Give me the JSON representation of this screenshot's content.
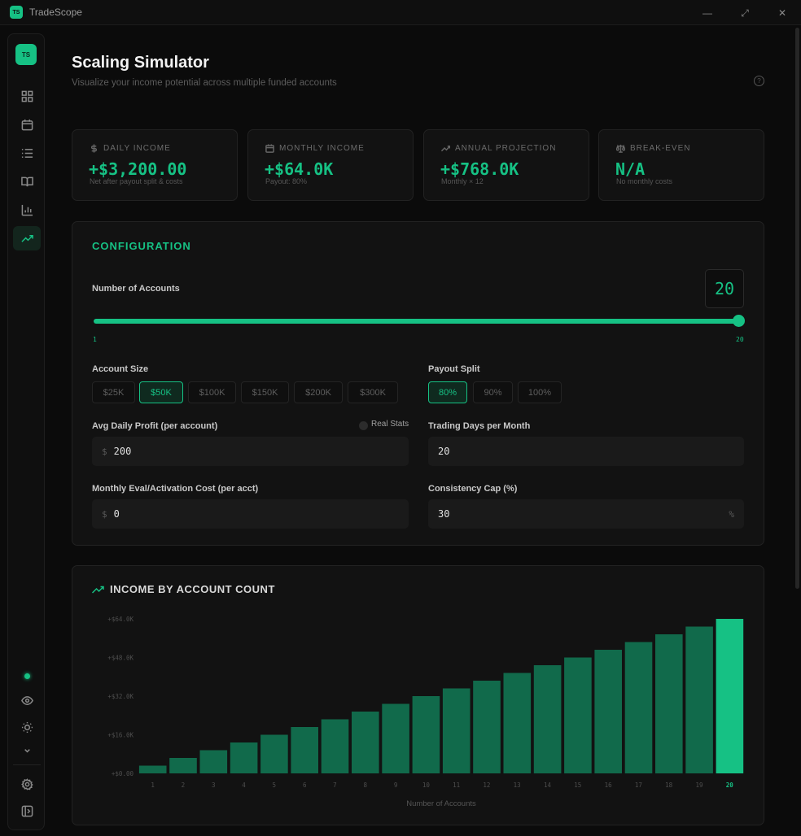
{
  "app": {
    "logo_text": "TS",
    "title": "TradeScope"
  },
  "window_controls": {
    "minimize": "—",
    "maximize": "⤢",
    "close": "✕"
  },
  "sidebar": {
    "avatar": "TS",
    "items": [
      {
        "icon": "dashboard-icon"
      },
      {
        "icon": "calendar-icon"
      },
      {
        "icon": "list-icon"
      },
      {
        "icon": "book-icon"
      },
      {
        "icon": "bar-chart-icon"
      },
      {
        "icon": "trending-up-icon",
        "active": true
      }
    ],
    "bottom_items": [
      {
        "icon": "eye-icon"
      },
      {
        "icon": "sun-icon"
      },
      {
        "icon": "chevron-down-icon"
      },
      {
        "icon": "gear-icon"
      },
      {
        "icon": "panel-toggle-icon"
      }
    ]
  },
  "header": {
    "title": "Scaling Simulator",
    "subtitle": "Visualize your income potential across multiple funded accounts",
    "help": "?"
  },
  "stats": [
    {
      "label": "DAILY INCOME",
      "icon": "dollar-icon",
      "value": "+$3,200.00",
      "note": "Net after payout split & costs"
    },
    {
      "label": "MONTHLY INCOME",
      "icon": "calendar-icon",
      "value": "+$64.0K",
      "note": "Payout: 80%"
    },
    {
      "label": "ANNUAL PROJECTION",
      "icon": "trending-up-icon",
      "value": "+$768.0K",
      "note": "Monthly × 12"
    },
    {
      "label": "BREAK-EVEN",
      "icon": "scale-icon",
      "value": "N/A",
      "note": "No monthly costs"
    }
  ],
  "config": {
    "title": "CONFIGURATION",
    "accounts_label": "Number of Accounts",
    "accounts_value": "20",
    "slider_min": "1",
    "slider_max": "20",
    "slider_fraction": 1.0,
    "account_size_label": "Account Size",
    "account_sizes": [
      "$25K",
      "$50K",
      "$100K",
      "$150K",
      "$200K",
      "$300K"
    ],
    "account_size_selected": "$50K",
    "payout_split_label": "Payout Split",
    "payout_splits": [
      "80%",
      "90%",
      "100%"
    ],
    "payout_split_selected": "80%",
    "avg_daily_label": "Avg Daily Profit (per account)",
    "real_stats_label": "Real Stats",
    "avg_daily_prefix": "$",
    "avg_daily_value": "200",
    "trading_days_label": "Trading Days per Month",
    "trading_days_value": "20",
    "eval_cost_label": "Monthly Eval/Activation Cost (per acct)",
    "eval_cost_prefix": "$",
    "eval_cost_value": "0",
    "consistency_label": "Consistency Cap (%)",
    "consistency_value": "30",
    "consistency_suffix": "%"
  },
  "colors": {
    "accent": "#16c184",
    "bar": "#116a4b",
    "background": "#0b0b0b",
    "panel": "#121212"
  },
  "chart_data": {
    "type": "bar",
    "title": "INCOME BY ACCOUNT COUNT",
    "xlabel": "Number of Accounts",
    "ylabel": "",
    "categories": [
      "1",
      "2",
      "3",
      "4",
      "5",
      "6",
      "7",
      "8",
      "9",
      "10",
      "11",
      "12",
      "13",
      "14",
      "15",
      "16",
      "17",
      "18",
      "19",
      "20"
    ],
    "values": [
      3200,
      6400,
      9600,
      12800,
      16000,
      19200,
      22400,
      25600,
      28800,
      32000,
      35200,
      38400,
      41600,
      44800,
      48000,
      51200,
      54400,
      57600,
      60800,
      64000
    ],
    "highlight_category": "20",
    "yticks": [
      {
        "value": 0,
        "label": "+$0.00"
      },
      {
        "value": 16000,
        "label": "+$16.0K"
      },
      {
        "value": 32000,
        "label": "+$32.0K"
      },
      {
        "value": 48000,
        "label": "+$48.0K"
      },
      {
        "value": 64000,
        "label": "+$64.0K"
      }
    ],
    "ylim": [
      0,
      64000
    ],
    "grid": false
  }
}
